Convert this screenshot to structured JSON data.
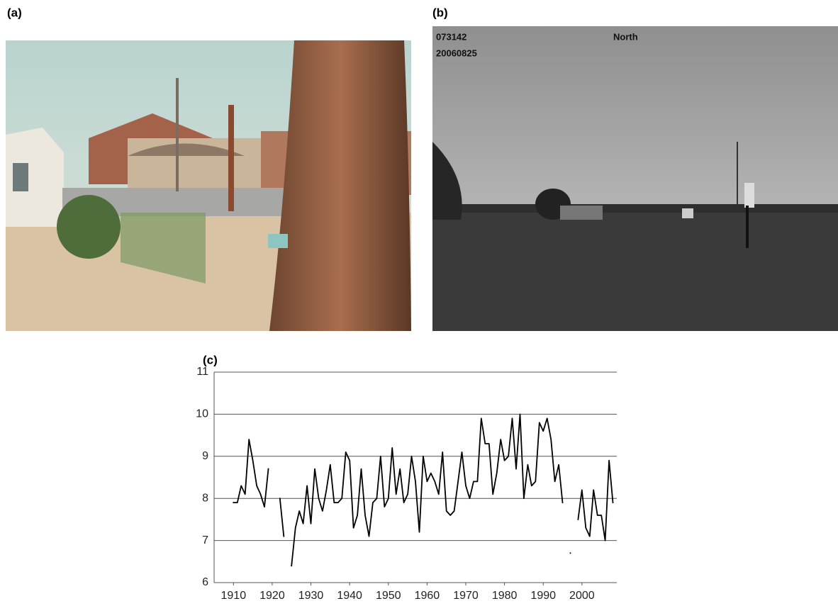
{
  "panels": {
    "a": {
      "label": "(a)"
    },
    "b": {
      "label": "(b)",
      "station": "073142",
      "date": "20060825",
      "direction": "North"
    }
  },
  "chart_data": {
    "type": "line",
    "title": "(c)",
    "x": [
      1910,
      1911,
      1912,
      1913,
      1914,
      1915,
      1916,
      1917,
      1918,
      1919,
      1920,
      1921,
      1922,
      1923,
      1924,
      1925,
      1926,
      1927,
      1928,
      1929,
      1930,
      1931,
      1932,
      1933,
      1934,
      1935,
      1936,
      1937,
      1938,
      1939,
      1940,
      1941,
      1942,
      1943,
      1944,
      1945,
      1946,
      1947,
      1948,
      1949,
      1950,
      1951,
      1952,
      1953,
      1954,
      1955,
      1956,
      1957,
      1958,
      1959,
      1960,
      1961,
      1962,
      1963,
      1964,
      1965,
      1966,
      1967,
      1968,
      1969,
      1970,
      1971,
      1972,
      1973,
      1974,
      1975,
      1976,
      1977,
      1978,
      1979,
      1980,
      1981,
      1982,
      1983,
      1984,
      1985,
      1986,
      1987,
      1988,
      1989,
      1990,
      1991,
      1992,
      1993,
      1994,
      1995,
      1996,
      1997,
      1998,
      1999,
      2000,
      2001,
      2002,
      2003,
      2004,
      2005,
      2006,
      2007,
      2008
    ],
    "values": [
      7.9,
      7.9,
      8.3,
      8.1,
      9.4,
      8.9,
      8.3,
      8.1,
      7.8,
      8.7,
      null,
      null,
      8.0,
      7.1,
      null,
      6.4,
      7.3,
      7.7,
      7.4,
      8.3,
      7.4,
      8.7,
      8.0,
      7.7,
      8.2,
      8.8,
      7.9,
      7.9,
      8.0,
      9.1,
      8.9,
      7.3,
      7.6,
      8.7,
      7.6,
      7.1,
      7.9,
      8.0,
      9.0,
      7.8,
      8.0,
      9.2,
      8.1,
      8.7,
      7.9,
      8.1,
      9.0,
      8.4,
      7.2,
      9.0,
      8.4,
      8.6,
      8.4,
      8.1,
      9.1,
      7.7,
      7.6,
      7.7,
      8.4,
      9.1,
      8.3,
      8.0,
      8.4,
      8.4,
      9.9,
      9.3,
      9.3,
      8.1,
      8.6,
      9.4,
      8.9,
      9.0,
      9.9,
      8.7,
      10.0,
      8.0,
      8.8,
      8.3,
      8.4,
      9.8,
      9.6,
      9.9,
      9.4,
      8.4,
      8.8,
      7.9,
      null,
      6.7,
      null,
      7.5,
      8.2,
      7.3,
      7.1,
      8.2,
      7.6,
      7.6,
      7.0,
      8.9,
      7.9
    ],
    "color": "#000000",
    "xlim": [
      1905,
      2009
    ],
    "xticks": [
      1910,
      1920,
      1930,
      1940,
      1950,
      1960,
      1970,
      1980,
      1990,
      2000
    ],
    "ylim": [
      6,
      11
    ],
    "yticks": [
      6,
      7,
      8,
      9,
      10,
      11
    ],
    "grid": true
  }
}
